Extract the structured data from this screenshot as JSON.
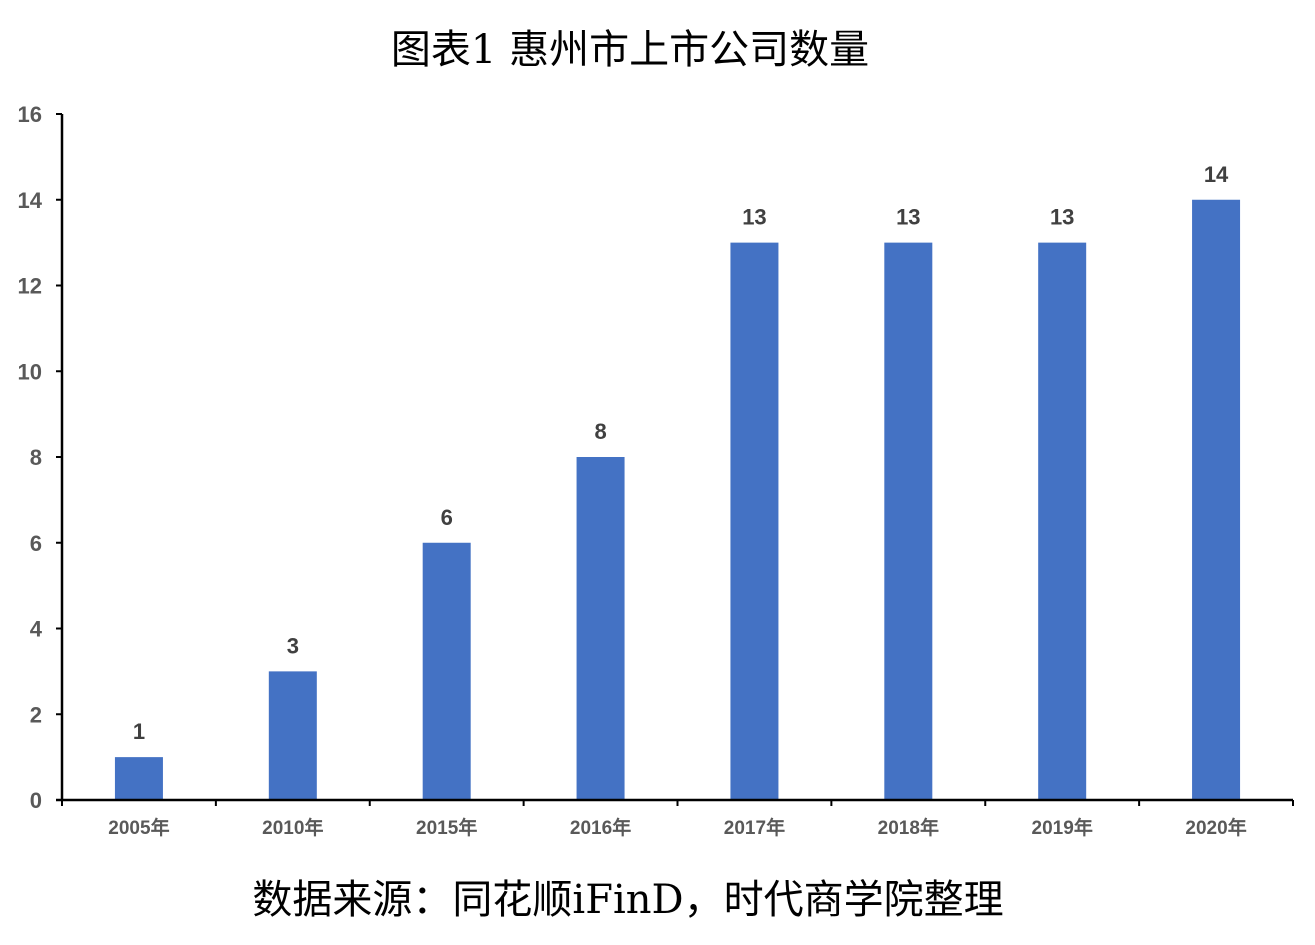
{
  "title": "图表1  惠州市上市公司数量",
  "source": "数据来源：同花顺iFinD，时代商学院整理",
  "colors": {
    "bar": "#4472C4",
    "axis": "#000000",
    "tick_label": "#595959",
    "data_label": "#404040"
  },
  "chart_data": {
    "type": "bar",
    "title": "图表1  惠州市上市公司数量",
    "xlabel": "",
    "ylabel": "",
    "categories": [
      "2005年",
      "2010年",
      "2015年",
      "2016年",
      "2017年",
      "2018年",
      "2019年",
      "2020年"
    ],
    "values": [
      1,
      3,
      6,
      8,
      13,
      13,
      13,
      14
    ],
    "ylim": [
      0,
      16
    ],
    "yticks": [
      0,
      2,
      4,
      6,
      8,
      10,
      12,
      14,
      16
    ],
    "grid": false,
    "legend": "none",
    "data_labels": true
  }
}
